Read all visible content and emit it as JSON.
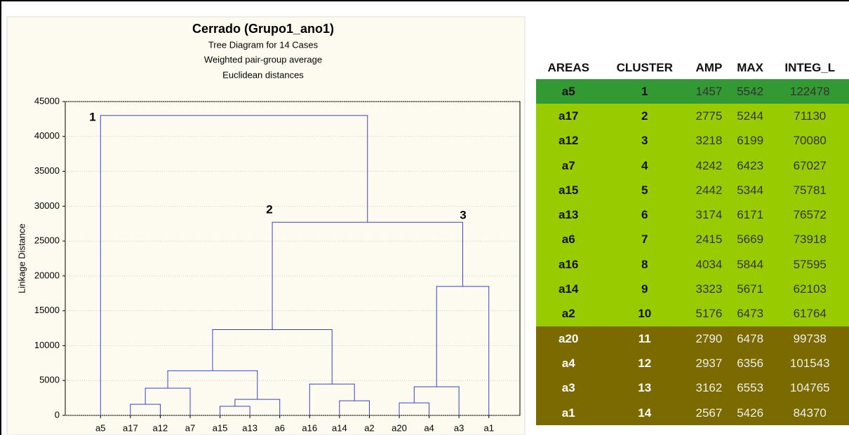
{
  "chart_data": {
    "type": "dendrogram",
    "title": "Cerrado (Grupo1_ano1)",
    "subtitles": [
      "Tree Diagram for 14 Cases",
      "Weighted pair-group average",
      "Euclidean distances"
    ],
    "y_label": "Linkage Distance",
    "categories": [
      "a5",
      "a17",
      "a12",
      "a7",
      "a15",
      "a13",
      "a6",
      "a16",
      "a14",
      "a2",
      "a20",
      "a4",
      "a3",
      "a1"
    ],
    "ylim": [
      0,
      45000
    ],
    "yticks": [
      0,
      5000,
      10000,
      15000,
      20000,
      25000,
      30000,
      35000,
      40000,
      45000
    ],
    "grid": true,
    "color": "#3344cc",
    "annotations": [
      "1",
      "2",
      "3"
    ],
    "tree": {
      "height": 43000,
      "children": [
        0,
        {
          "height": 27700,
          "children": [
            {
              "height": 12300,
              "children": [
                {
                  "height": 6400,
                  "children": [
                    {
                      "height": 3900,
                      "children": [
                        {
                          "height": 1600,
                          "children": [
                            1,
                            2
                          ]
                        },
                        3
                      ]
                    },
                    {
                      "height": 2300,
                      "children": [
                        {
                          "height": 1300,
                          "children": [
                            4,
                            5
                          ]
                        },
                        6
                      ]
                    }
                  ]
                },
                {
                  "height": 4500,
                  "children": [
                    7,
                    {
                      "height": 2100,
                      "children": [
                        8,
                        9
                      ]
                    }
                  ]
                }
              ]
            },
            {
              "height": 18500,
              "children": [
                {
                  "height": 4100,
                  "children": [
                    {
                      "height": 1800,
                      "children": [
                        10,
                        11
                      ]
                    },
                    12
                  ]
                },
                13
              ]
            }
          ]
        }
      ]
    }
  },
  "table": {
    "headers": [
      "AREAS",
      "CLUSTER",
      "AMP",
      "MAX",
      "INTEG_L"
    ],
    "row_colors": [
      "#339933",
      "#99cc00",
      "#99cc00",
      "#99cc00",
      "#99cc00",
      "#99cc00",
      "#99cc00",
      "#99cc00",
      "#99cc00",
      "#99cc00",
      "#7a6a00",
      "#7a6a00",
      "#7a6a00",
      "#7a6a00"
    ],
    "rows": [
      [
        "a5",
        1,
        1457,
        5542,
        122478
      ],
      [
        "a17",
        2,
        2775,
        5244,
        71130
      ],
      [
        "a12",
        3,
        3218,
        6199,
        70080
      ],
      [
        "a7",
        4,
        4242,
        6423,
        67027
      ],
      [
        "a15",
        5,
        2442,
        5344,
        75781
      ],
      [
        "a13",
        6,
        3174,
        6171,
        76572
      ],
      [
        "a6",
        7,
        2415,
        5669,
        73918
      ],
      [
        "a16",
        8,
        4034,
        5844,
        57595
      ],
      [
        "a14",
        9,
        3323,
        5671,
        62103
      ],
      [
        "a2",
        10,
        5176,
        6473,
        61764
      ],
      [
        "a20",
        11,
        2790,
        6478,
        99738
      ],
      [
        "a4",
        12,
        2937,
        6356,
        101543
      ],
      [
        "a3",
        13,
        3162,
        6553,
        104765
      ],
      [
        "a1",
        14,
        2567,
        5426,
        84370
      ]
    ]
  }
}
